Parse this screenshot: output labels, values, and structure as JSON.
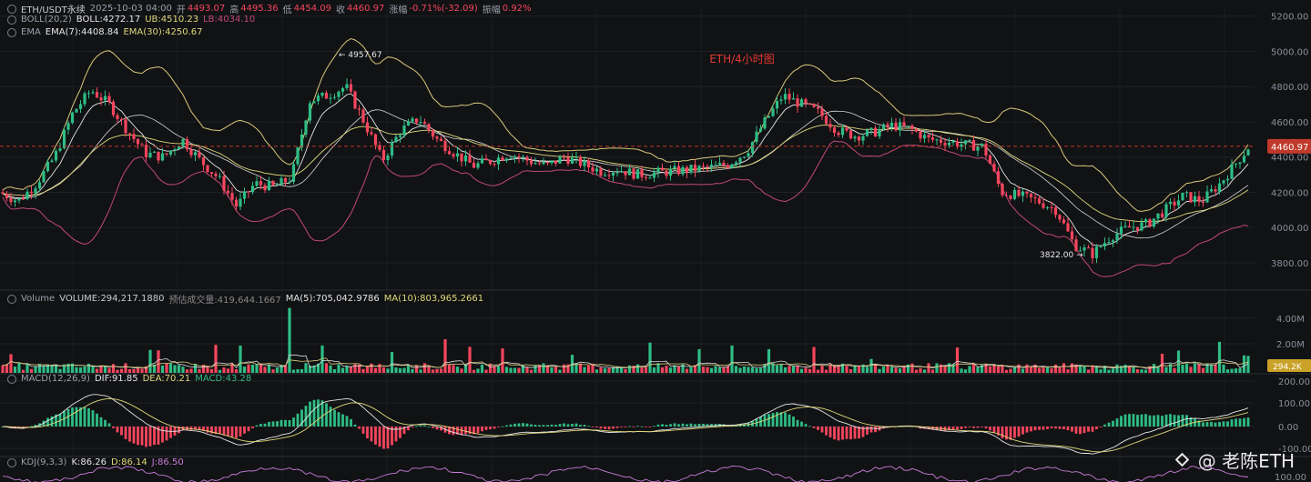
{
  "header": {
    "symbol": "ETH/USDT永续",
    "date": "2025-10-03 04:00",
    "open_label": "开",
    "open": "4493.07",
    "high_label": "高",
    "high": "4495.36",
    "low_label": "低",
    "low": "4454.09",
    "close_label": "收",
    "close": "4460.97",
    "change_label": "涨幅",
    "change": "-0.71%(-32.09)",
    "amp_label": "振幅",
    "amp": "0.92%"
  },
  "boll": {
    "name": "BOLL(20,2)",
    "mid": "BOLL:4272.17",
    "ub": "UB:4510.23",
    "lb": "LB:4034.10"
  },
  "ema": {
    "name": "EMA",
    "ema7": "EMA(7):4408.84",
    "ema30": "EMA(30):4250.67"
  },
  "volume_legend": {
    "name": "Volume",
    "volume": "VOLUME:294,217.1880",
    "est": "预估成交量:419,644.1667",
    "ma5": "MA(5):705,042.9786",
    "ma10": "MA(10):803,965.2661"
  },
  "macd_legend": {
    "name": "MACD(12,26,9)",
    "dif": "DIF:91.85",
    "dea": "DEA:70.21",
    "macd": "MACD:43.28"
  },
  "kdj_legend": {
    "name": "KDJ(9,3,3)",
    "k": "K:86.26",
    "d": "D:86.14",
    "j": "J:86.50"
  },
  "annotations": {
    "title": "ETH/4小时图",
    "high": "4957.67",
    "low": "3822.00"
  },
  "watermark": "@ 老陈ETH",
  "colors": {
    "up": "#2ebd85",
    "down": "#f6465d",
    "boll": "#d8c97a",
    "boll_lb": "#c0497a",
    "ema7": "#e6e6e6",
    "ema30": "#e0d87a",
    "title": "#e53935",
    "price_tag": "#c0392b"
  },
  "chart_data": [
    {
      "type": "line",
      "title": "ETH/4小时图",
      "x": [
        0,
        20,
        40,
        60,
        80,
        100,
        120,
        140,
        160,
        180,
        200,
        220,
        240,
        260,
        280,
        300,
        320,
        340,
        360,
        380,
        400,
        420,
        440,
        460,
        480,
        500,
        520,
        540,
        560,
        580,
        600,
        620,
        640,
        660,
        680,
        700,
        720,
        740,
        760,
        780,
        800,
        820,
        840,
        860,
        880,
        900,
        920,
        940,
        960,
        980,
        1000,
        1020,
        1040,
        1060,
        1080,
        1100,
        1120,
        1140,
        1160,
        1180,
        1200,
        1220,
        1240,
        1260,
        1280,
        1300,
        1320,
        1340,
        1360,
        1372
      ],
      "series": [
        {
          "name": "close",
          "values": [
            4200,
            4150,
            4250,
            4400,
            4650,
            4780,
            4700,
            4550,
            4420,
            4400,
            4500,
            4380,
            4280,
            4120,
            4250,
            4230,
            4280,
            4720,
            4750,
            4800,
            4600,
            4380,
            4550,
            4620,
            4500,
            4420,
            4350,
            4380,
            4420,
            4380,
            4350,
            4400,
            4360,
            4320,
            4330,
            4300,
            4310,
            4320,
            4330,
            4340,
            4360,
            4430,
            4600,
            4750,
            4700,
            4650,
            4550,
            4520,
            4540,
            4580,
            4560,
            4500,
            4490,
            4470,
            4460,
            4200,
            4180,
            4150,
            4100,
            3900,
            3850,
            3950,
            4000,
            4020,
            4100,
            4180,
            4150,
            4250,
            4380,
            4461
          ]
        }
      ],
      "ylim": [
        3650,
        5250
      ],
      "yticks": [
        "5200.00",
        "5000.00",
        "4800.00",
        "4600.00",
        "4400.00",
        "4200.00",
        "4000.00",
        "3800.00"
      ],
      "current_price": "4460.97"
    },
    {
      "type": "bar",
      "title": "Volume",
      "yticks": [
        "4.00M",
        "2.00M"
      ],
      "current_value": "294.2K"
    },
    {
      "type": "bar",
      "title": "MACD(12,26,9)",
      "yticks": [
        "200.00",
        "100.00",
        "0.00",
        "-100.00"
      ]
    },
    {
      "type": "line",
      "title": "KDJ(9,3,3)",
      "yticks": [
        "100.00"
      ]
    }
  ]
}
